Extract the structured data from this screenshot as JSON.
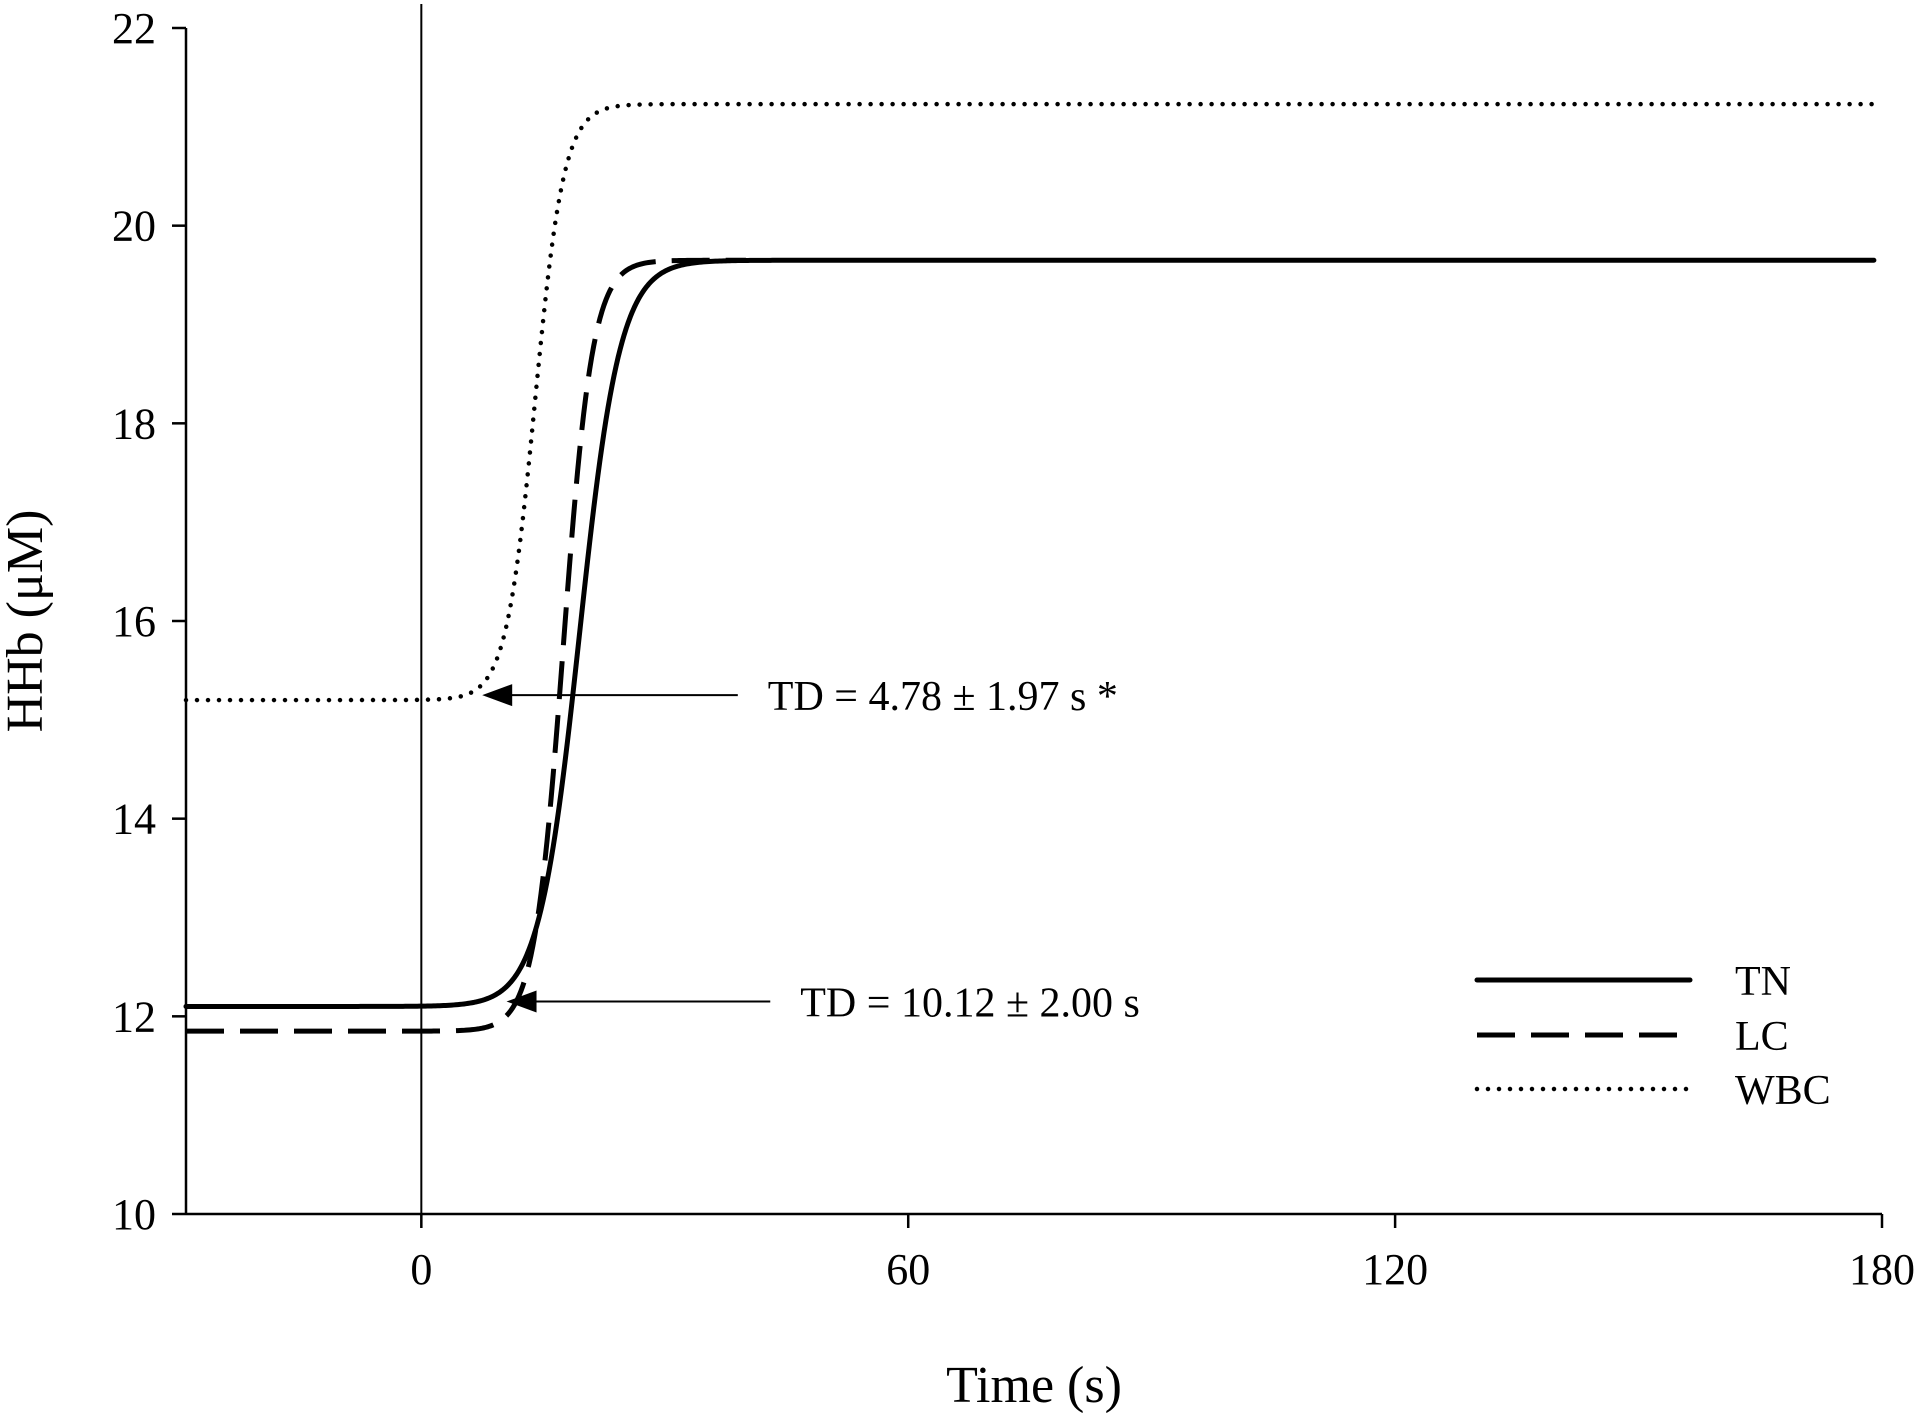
{
  "chart_data": {
    "type": "line",
    "title": "",
    "xlabel": "Time (s)",
    "ylabel": "HHb (μM)",
    "xlim": [
      -29,
      180
    ],
    "ylim": [
      10,
      22
    ],
    "x_ticks": [
      0,
      60,
      120,
      180
    ],
    "y_ticks": [
      10,
      12,
      14,
      16,
      18,
      20,
      22
    ],
    "grid": false,
    "legend_position": "bottom-right",
    "vertical_reference_line_x": 0,
    "series": [
      {
        "name": "TN",
        "style": "solid",
        "baseline": 12.1,
        "amplitude": 7.55,
        "midpoint_s": 19.5,
        "time_constant_s": 2.5,
        "x_end": 179
      },
      {
        "name": "LC",
        "style": "dashed",
        "baseline": 11.85,
        "amplitude": 7.8,
        "midpoint_s": 17.5,
        "time_constant_s": 1.8,
        "x_end": 40
      },
      {
        "name": "WBC",
        "style": "dotted",
        "baseline": 15.2,
        "amplitude": 6.03,
        "midpoint_s": 14,
        "time_constant_s": 1.8,
        "x_end": 179
      }
    ],
    "annotations": [
      {
        "text": "TD = 4.78 ± 1.97 s *",
        "arrow_from": [
          39,
          15.25
        ],
        "arrow_to": [
          7.5,
          15.25
        ]
      },
      {
        "text": "TD = 10.12 ± 2.00 s",
        "arrow_from": [
          43,
          12.15
        ],
        "arrow_to": [
          10.5,
          12.15
        ]
      }
    ]
  }
}
